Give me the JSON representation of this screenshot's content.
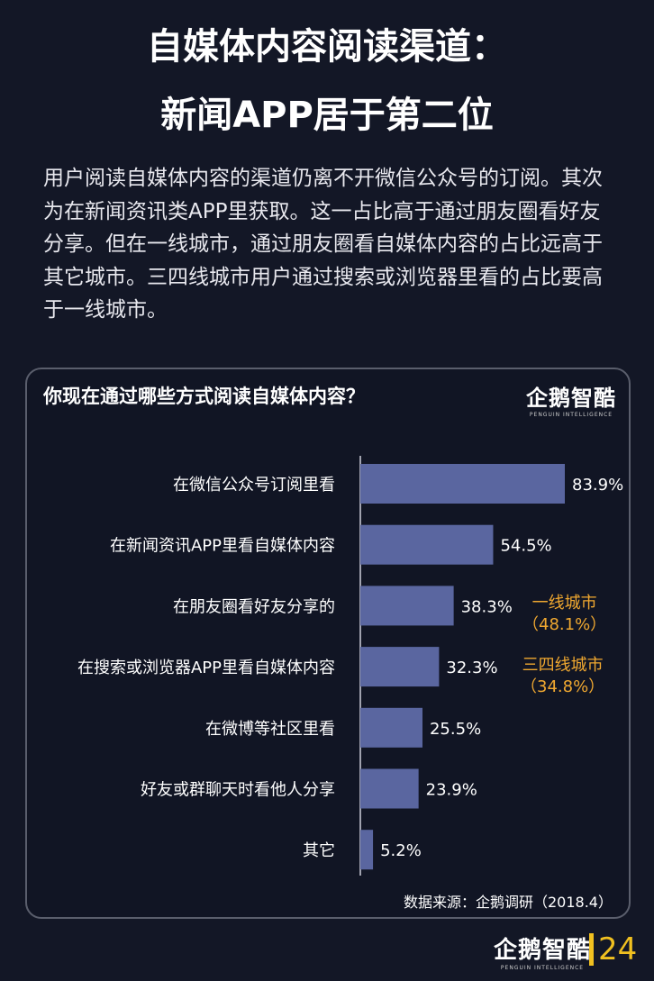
{
  "header": {
    "title_line1": "自媒体内容阅读渠道：",
    "title_line2": "新闻APP居于第二位"
  },
  "intro": "用户阅读自媒体内容的渠道仍离不开微信公众号的订阅。其次为在新闻资讯类APP里获取。这一占比高于通过朋友圈看好友分享。但在一线城市，通过朋友圈看自媒体内容的占比远高于其它城市。三四线城市用户通过搜索或浏览器里看的占比要高于一线城市。",
  "brand": {
    "name": "企鹅智酷",
    "tagline": "PENGUIN INTELLIGENCE"
  },
  "source": "数据来源：企鹅调研（2018.4）",
  "page_number": "24",
  "colors": {
    "bar": "#5a66a0",
    "accent": "#f0a830",
    "page": "#f0c020"
  },
  "chart_data": {
    "type": "bar",
    "orientation": "horizontal",
    "title": "你现在通过哪些方式阅读自媒体内容？",
    "categories": [
      "在微信公众号订阅里看",
      "在新闻资讯APP里看自媒体内容",
      "在朋友圈看好友分享的",
      "在搜索或浏览器APP里看自媒体内容",
      "在微博等社区里看",
      "好友或群聊天时看他人分享",
      "其它"
    ],
    "values": [
      83.9,
      54.5,
      38.3,
      32.3,
      25.5,
      23.9,
      5.2
    ],
    "value_labels": [
      "83.9%",
      "54.5%",
      "38.3%",
      "32.3%",
      "25.5%",
      "23.9%",
      "5.2%"
    ],
    "xlim": [
      0,
      100
    ],
    "annotations": [
      {
        "category": "在朋友圈看好友分享的",
        "line1": "一线城市",
        "line2": "（48.1%）"
      },
      {
        "category": "在搜索或浏览器APP里看自媒体内容",
        "line1": "三四线城市",
        "line2": "（34.8%）"
      }
    ]
  }
}
